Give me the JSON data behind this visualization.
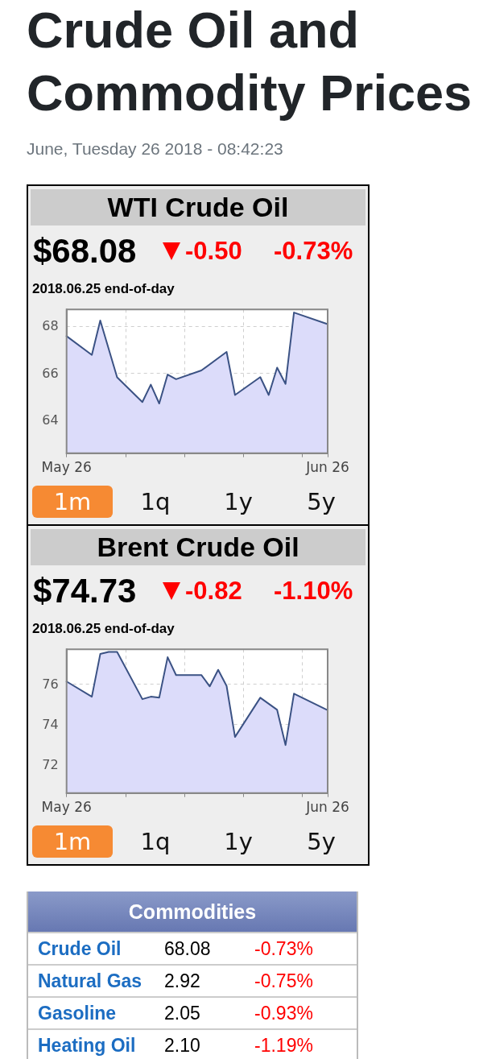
{
  "chart_data": [
    {
      "type": "other",
      "title": "Crude Oil and Commodity Prices",
      "subtitle": "June, Tuesday 26 2018 - 08:42:23"
    },
    {
      "type": "area",
      "title": "WTI Crude Oil",
      "annotations": [
        "$68.08",
        "-0.50",
        "-0.73%",
        "2018.06.25 end-of-day",
        "1m",
        "1q",
        "1y",
        "5y"
      ],
      "x": [
        "2018-05-26",
        "2018-05-29",
        "2018-05-30",
        "2018-06-01",
        "2018-06-04",
        "2018-06-05",
        "2018-06-06",
        "2018-06-07",
        "2018-06-08",
        "2018-06-11",
        "2018-06-14",
        "2018-06-15",
        "2018-06-18",
        "2018-06-19",
        "2018-06-20",
        "2018-06-21",
        "2018-06-22",
        "2018-06-26"
      ],
      "series": [
        {
          "color": "#3b5284",
          "values": [
            67.57,
            66.77,
            68.23,
            65.82,
            64.77,
            65.51,
            64.71,
            65.94,
            65.74,
            66.11,
            66.9,
            65.07,
            65.83,
            65.07,
            66.23,
            65.54,
            68.57,
            68.08
          ]
        }
      ],
      "xlim": [
        "2018-05-26",
        "2018-06-26"
      ],
      "xticks": [
        {
          "value": "2018-05-26",
          "label": "May 26"
        },
        {
          "value": "2018-06-02",
          "label": null
        },
        {
          "value": "2018-06-09",
          "label": null
        },
        {
          "value": "2018-06-16",
          "label": null
        },
        {
          "value": "2018-06-23",
          "label": null
        },
        {
          "value": "2018-06-26",
          "label": "Jun 26"
        }
      ],
      "ylim": [
        62.6,
        68.7
      ],
      "yticks": [
        64,
        66,
        68
      ],
      "grid": true
    },
    {
      "type": "area",
      "title": "Brent Crude Oil",
      "annotations": [
        "$74.73",
        "-0.82",
        "-1.10%",
        "2018.06.25 end-of-day",
        "1m",
        "1q",
        "1y",
        "5y"
      ],
      "x": [
        "2018-05-26",
        "2018-05-29",
        "2018-05-30",
        "2018-05-31",
        "2018-06-01",
        "2018-06-04",
        "2018-06-05",
        "2018-06-06",
        "2018-06-07",
        "2018-06-08",
        "2018-06-11",
        "2018-06-12",
        "2018-06-13",
        "2018-06-14",
        "2018-06-15",
        "2018-06-18",
        "2018-06-20",
        "2018-06-21",
        "2018-06-22",
        "2018-06-26"
      ],
      "series": [
        {
          "color": "#3b5284",
          "values": [
            76.11,
            75.36,
            77.47,
            77.57,
            77.57,
            75.24,
            75.36,
            75.31,
            77.31,
            76.43,
            76.43,
            75.87,
            76.69,
            75.89,
            73.37,
            75.31,
            74.71,
            72.97,
            75.51,
            74.69
          ]
        }
      ],
      "xlim": [
        "2018-05-26",
        "2018-06-26"
      ],
      "xticks": [
        {
          "value": "2018-05-26",
          "label": "May 26"
        },
        {
          "value": "2018-06-02",
          "label": null
        },
        {
          "value": "2018-06-09",
          "label": null
        },
        {
          "value": "2018-06-16",
          "label": null
        },
        {
          "value": "2018-06-23",
          "label": null
        },
        {
          "value": "2018-06-26",
          "label": "Jun 26"
        }
      ],
      "ylim": [
        70.6,
        77.7
      ],
      "yticks": [
        72,
        74,
        76
      ],
      "grid": true
    },
    {
      "type": "other",
      "title": "Commodities",
      "annotations": [
        "Crude Oil",
        "68.08",
        "-0.73%",
        "Natural Gas",
        "2.92",
        "-0.75%",
        "Gasoline",
        "2.05",
        "-0.93%",
        "Heating Oil",
        "2.10",
        "-1.19%"
      ]
    }
  ]
}
